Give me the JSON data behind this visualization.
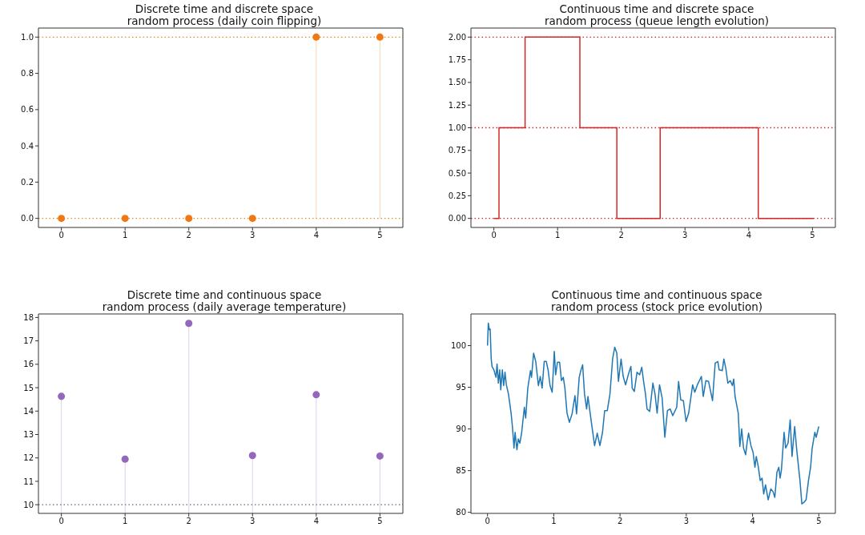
{
  "chart_data": [
    {
      "type": "lollipop",
      "title": "Discrete time and discrete space\nrandom process (daily coin flipping)",
      "marker": "circle",
      "series": [
        {
          "color": "#f07814",
          "x": [
            0,
            1,
            2,
            3,
            4,
            5
          ],
          "values": [
            0,
            0,
            0,
            0,
            1,
            1
          ]
        }
      ],
      "xlim": [
        -0.36,
        5.36
      ],
      "xticks": [
        0,
        1,
        2,
        3,
        4,
        5
      ],
      "ylim": [
        -0.05,
        1.05
      ],
      "yticks": [
        {
          "value": 0,
          "label": "0.0"
        },
        {
          "value": 0.2,
          "label": "0.2"
        },
        {
          "value": 0.4,
          "label": "0.4"
        },
        {
          "value": 0.6,
          "label": "0.6"
        },
        {
          "value": 0.8,
          "label": "0.8"
        },
        {
          "value": 1,
          "label": "1.0"
        }
      ],
      "ref_lines": [
        {
          "axis": "y",
          "value": 0,
          "color": "#e0902a",
          "line_style": "dotted"
        },
        {
          "axis": "y",
          "value": 1,
          "color": "#e0902a",
          "line_style": "dotted"
        }
      ]
    },
    {
      "type": "step",
      "title": "Continuous time and discrete space\nrandom process (queue length evolution)",
      "series": [
        {
          "color": "#d62728",
          "x": [
            0,
            0.08,
            0.49,
            1.35,
            1.93,
            2.61,
            4.15,
            5.02
          ],
          "values": [
            0,
            1,
            2,
            1,
            0,
            1,
            0,
            0
          ]
        }
      ],
      "xlim": [
        -0.36,
        5.36
      ],
      "xticks": [
        0,
        1,
        2,
        3,
        4,
        5
      ],
      "ylim": [
        -0.1,
        2.1
      ],
      "yticks": [
        {
          "value": 0,
          "label": "0.00"
        },
        {
          "value": 0.25,
          "label": "0.25"
        },
        {
          "value": 0.5,
          "label": "0.50"
        },
        {
          "value": 0.75,
          "label": "0.75"
        },
        {
          "value": 1,
          "label": "1.00"
        },
        {
          "value": 1.25,
          "label": "1.25"
        },
        {
          "value": 1.5,
          "label": "1.50"
        },
        {
          "value": 1.75,
          "label": "1.75"
        },
        {
          "value": 2,
          "label": "2.00"
        }
      ],
      "ref_lines": [
        {
          "axis": "y",
          "value": 0,
          "color": "#d62728",
          "line_style": "dotted"
        },
        {
          "axis": "y",
          "value": 1,
          "color": "#d62728",
          "line_style": "dotted"
        },
        {
          "axis": "y",
          "value": 2,
          "color": "#d62728",
          "line_style": "dotted"
        }
      ]
    },
    {
      "type": "lollipop",
      "title": "Discrete time and continuous space\nrandom process (daily average temperature)",
      "marker": "circle",
      "series": [
        {
          "color": "#9467bd",
          "x": [
            0,
            1,
            2,
            3,
            4,
            5
          ],
          "values": [
            14.63,
            11.95,
            17.75,
            12.1,
            14.7,
            12.08
          ]
        }
      ],
      "xlim": [
        -0.36,
        5.36
      ],
      "xticks": [
        0,
        1,
        2,
        3,
        4,
        5
      ],
      "ylim": [
        9.63,
        18.15
      ],
      "yticks": [
        10,
        11,
        12,
        13,
        14,
        15,
        16,
        17,
        18
      ],
      "ref_lines": [
        {
          "axis": "y",
          "value": 10,
          "color": "#6a6090",
          "line_style": "dotted"
        }
      ]
    },
    {
      "type": "line",
      "title": "Continuous time and continuous space\nrandom process (stock price evolution)",
      "series": [
        {
          "color": "#1f77b4",
          "x": [
            0,
            0.012,
            0.028,
            0.04,
            0.056,
            0.068,
            0.096,
            0.128,
            0.144,
            0.164,
            0.184,
            0.2,
            0.224,
            0.244,
            0.264,
            0.284,
            0.316,
            0.356,
            0.376,
            0.4,
            0.416,
            0.444,
            0.464,
            0.488,
            0.516,
            0.556,
            0.576,
            0.608,
            0.648,
            0.664,
            0.696,
            0.728,
            0.768,
            0.796,
            0.824,
            0.856,
            0.888,
            0.916,
            0.944,
            0.976,
            1.008,
            1.028,
            1.056,
            1.088,
            1.116,
            1.144,
            1.168,
            1.2,
            1.236,
            1.276,
            1.32,
            1.344,
            1.384,
            1.408,
            1.436,
            1.464,
            1.496,
            1.516,
            1.544,
            1.576,
            1.616,
            1.656,
            1.696,
            1.736,
            1.768,
            1.808,
            1.848,
            1.888,
            1.92,
            1.952,
            1.976,
            2.016,
            2.048,
            2.084,
            2.128,
            2.164,
            2.184,
            2.216,
            2.256,
            2.296,
            2.328,
            2.356,
            2.384,
            2.408,
            2.448,
            2.496,
            2.528,
            2.56,
            2.596,
            2.636,
            2.676,
            2.716,
            2.756,
            2.796,
            2.856,
            2.884,
            2.916,
            2.956,
            2.996,
            3.036,
            3.096,
            3.128,
            3.168,
            3.228,
            3.256,
            3.296,
            3.336,
            3.396,
            3.436,
            3.476,
            3.496,
            3.544,
            3.567,
            3.596,
            3.627,
            3.664,
            3.696,
            3.716,
            3.736,
            3.784,
            3.808,
            3.836,
            3.864,
            3.896,
            3.92,
            3.94,
            3.976,
            4.008,
            4.036,
            4.056,
            4.088,
            4.116,
            4.144,
            4.168,
            4.196,
            4.236,
            4.276,
            4.308,
            4.336,
            4.368,
            4.396,
            4.416,
            4.436,
            4.476,
            4.5,
            4.536,
            4.568,
            4.596,
            4.636,
            4.668,
            4.716,
            4.744,
            4.776,
            4.808,
            4.844,
            4.876,
            4.9,
            4.94,
            4.96,
            5.0
          ],
          "values": [
            100,
            102.7,
            101.9,
            102,
            98.4,
            97.5,
            97.1,
            96.2,
            97.8,
            95.5,
            97.1,
            94.7,
            97.1,
            95.2,
            96.8,
            95.3,
            94.2,
            91.9,
            90.3,
            87.7,
            89.6,
            87.5,
            88.8,
            88.3,
            89.6,
            92.6,
            91.3,
            94.9,
            97,
            96.2,
            99.1,
            98.1,
            95.2,
            96.3,
            94.9,
            98.1,
            98.1,
            97,
            95.2,
            94.4,
            99.3,
            96.5,
            98,
            98,
            95.8,
            96.2,
            94.9,
            91.9,
            90.8,
            91.8,
            94,
            91.8,
            96.2,
            97,
            97.7,
            94.2,
            92.4,
            93.9,
            92.2,
            90.3,
            88,
            89.5,
            88,
            89.6,
            92.2,
            92.2,
            94.2,
            98.4,
            99.8,
            99.1,
            95.7,
            98.4,
            96.3,
            95.3,
            96.6,
            97.5,
            94.9,
            94.5,
            96.8,
            96.5,
            97.4,
            95.7,
            94.2,
            92.4,
            92.1,
            95.5,
            94.2,
            91.9,
            95.3,
            93.7,
            89,
            92.2,
            92.4,
            91.6,
            92.6,
            95.7,
            93.5,
            93.4,
            90.9,
            91.9,
            95.3,
            94.4,
            95.3,
            96.3,
            93.9,
            95.8,
            95.7,
            93.4,
            97.9,
            98.1,
            97.1,
            97,
            98.4,
            97.3,
            95.5,
            95.8,
            95.2,
            96,
            93.9,
            91.9,
            87.9,
            90,
            87.7,
            86.9,
            88.5,
            89.5,
            88,
            87.2,
            85.4,
            86.7,
            85.4,
            83.8,
            84.1,
            82.2,
            83.3,
            81.5,
            82.8,
            82.5,
            81.8,
            84.8,
            85.4,
            84.1,
            85.1,
            89.6,
            87.7,
            88.3,
            91.1,
            86.7,
            90.3,
            87.4,
            83.8,
            81,
            81.2,
            81.5,
            83.8,
            85.4,
            87.7,
            89.6,
            89,
            90.3
          ]
        }
      ],
      "xlim": [
        -0.25,
        5.25
      ],
      "xticks": [
        0,
        1,
        2,
        3,
        4,
        5
      ],
      "ylim": [
        79.87,
        103.8
      ],
      "yticks": [
        80,
        85,
        90,
        95,
        100
      ]
    }
  ]
}
